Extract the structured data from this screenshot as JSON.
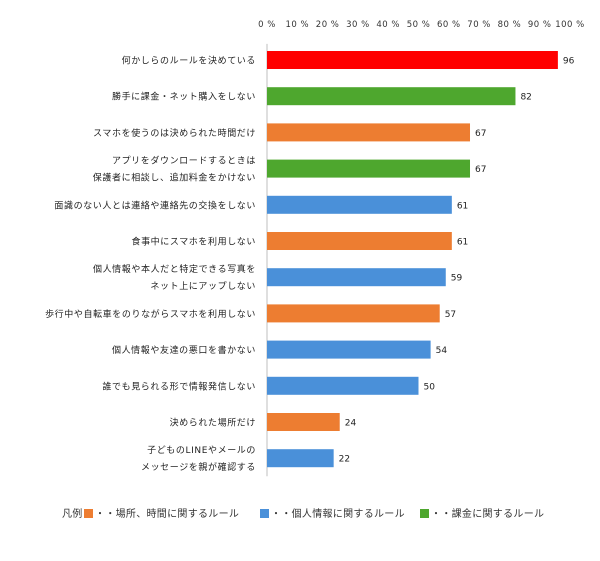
{
  "chart_data": {
    "type": "bar",
    "orientation": "horizontal",
    "xlim": [
      0,
      100
    ],
    "x_ticks": [
      "0 %",
      "10 %",
      "20 %",
      "30 %",
      "40 %",
      "50 %",
      "60 %",
      "70 %",
      "80 %",
      "90 %",
      "100 %"
    ],
    "categories": [
      [
        "何かしらのルールを決めている"
      ],
      [
        "勝手に課金・ネット購入をしない"
      ],
      [
        "スマホを使うのは決められた時間だけ"
      ],
      [
        "アプリをダウンロードするときは",
        "保護者に相談し、追加料金をかけない"
      ],
      [
        "面識のない人とは連絡や連絡先の交換をしない"
      ],
      [
        "食事中にスマホを利用しない"
      ],
      [
        "個人情報や本人だと特定できる写真を",
        "ネット上にアップしない"
      ],
      [
        "歩行中や自転車をのりながらスマホを利用しない"
      ],
      [
        "個人情報や友達の悪口を書かない"
      ],
      [
        "誰でも見られる形で情報発信しない"
      ],
      [
        "決められた場所だけ"
      ],
      [
        "子どものLINEやメールの",
        "メッセージを親が確認する"
      ]
    ],
    "values": [
      96,
      82,
      67,
      67,
      61,
      61,
      59,
      57,
      54,
      50,
      24,
      22
    ],
    "colors": [
      "#ff0000",
      "#4ea72e",
      "#ed7d31",
      "#4ea72e",
      "#4a90d9",
      "#ed7d31",
      "#4a90d9",
      "#ed7d31",
      "#4a90d9",
      "#4a90d9",
      "#ed7d31",
      "#4a90d9"
    ],
    "legend_position": "bottom",
    "grid": false
  },
  "legend": {
    "prefix": "凡例",
    "items": [
      {
        "label": "・・場所、時間に関するルール",
        "color": "#ed7d31"
      },
      {
        "label": "・・個人情報に関するルール",
        "color": "#4a90d9"
      },
      {
        "label": "・・課金に関するルール",
        "color": "#4ea72e"
      }
    ]
  }
}
